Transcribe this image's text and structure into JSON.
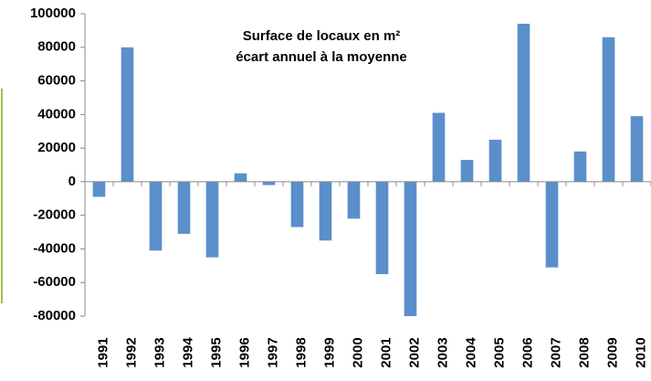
{
  "chart_data": {
    "type": "bar",
    "title": [
      "Surface de locaux en m²",
      "écart annuel à la moyenne"
    ],
    "categories": [
      "1991",
      "1992",
      "1993",
      "1994",
      "1995",
      "1996",
      "1997",
      "1998",
      "1999",
      "2000",
      "2001",
      "2002",
      "2003",
      "2004",
      "2005",
      "2006",
      "2007",
      "2008",
      "2009",
      "2010"
    ],
    "values": [
      -9000,
      80000,
      -41000,
      -31000,
      -45000,
      5000,
      -2000,
      -27000,
      -35000,
      -22000,
      -55000,
      -80000,
      41000,
      13000,
      25000,
      94000,
      -51000,
      18000,
      86000,
      39000
    ],
    "color": "#5b8fcb",
    "ylim": [
      -80000,
      100000
    ],
    "yticks": [
      -80000,
      -60000,
      -40000,
      -20000,
      0,
      20000,
      40000,
      60000,
      80000,
      100000
    ],
    "grid": false
  }
}
